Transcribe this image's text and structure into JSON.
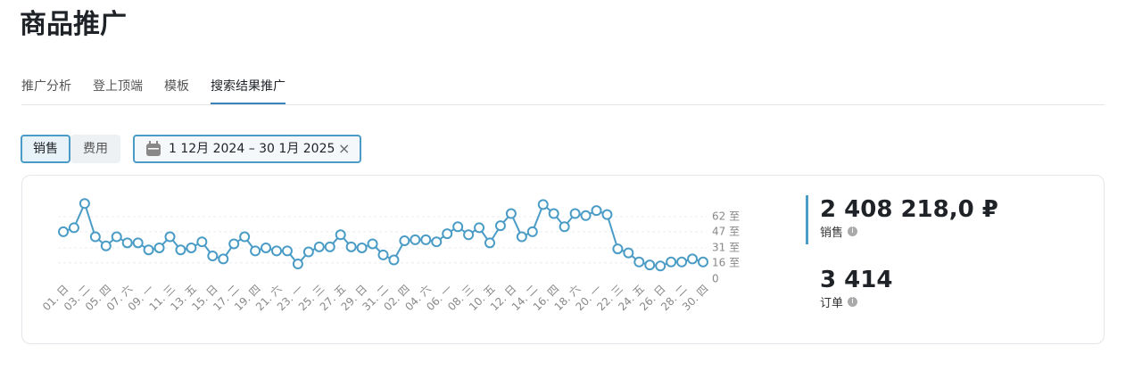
{
  "header": {
    "title": "商品推广"
  },
  "tabs": [
    "推广分析",
    "登上顶端",
    "模板",
    "搜索结果推广"
  ],
  "active_tab": 3,
  "toggle": [
    "销售",
    "费用"
  ],
  "active_toggle": 0,
  "date_range": "1 12月 2024 – 30 1月 2025",
  "chart_data": {
    "type": "line",
    "color": "#4a9cc6",
    "grid": true,
    "categories": [
      "01. 日",
      null,
      "03. 二",
      null,
      "05. 四",
      null,
      "07. 六",
      null,
      "09. 一",
      null,
      "11. 三",
      null,
      "13. 五",
      null,
      "15. 日",
      null,
      "17. 二",
      null,
      "19. 四",
      null,
      "21. 六",
      null,
      "23. 一",
      null,
      "25. 三",
      null,
      "27. 五",
      null,
      "29. 日",
      null,
      "31. 二",
      null,
      "02. 四",
      null,
      "04. 六",
      null,
      "06. 一",
      null,
      "08. 三",
      null,
      "10. 五",
      null,
      "12. 日",
      null,
      "14. 二",
      null,
      "16. 四",
      null,
      "18. 六",
      null,
      "20. 一",
      null,
      "22. 三",
      null,
      "24. 五",
      null,
      "26. 日",
      null,
      "28. 二",
      null,
      "30. 四"
    ],
    "values": [
      47,
      51,
      75,
      42,
      33,
      42,
      36,
      36,
      29,
      31,
      42,
      29,
      31,
      37,
      23,
      20,
      35,
      42,
      28,
      31,
      28,
      28,
      15,
      27,
      32,
      32,
      44,
      32,
      31,
      35,
      24,
      19,
      38,
      39,
      39,
      37,
      45,
      52,
      44,
      51,
      36,
      53,
      65,
      42,
      47,
      74,
      65,
      52,
      65,
      63,
      68,
      64,
      30,
      26,
      17,
      14,
      13,
      17,
      17,
      20,
      17
    ],
    "ylim": [
      0,
      80
    ],
    "yticks": [
      0,
      {
        "value": 16,
        "label": "16 至"
      },
      {
        "value": 31,
        "label": "31 至"
      },
      {
        "value": 47,
        "label": "47 至"
      },
      {
        "value": 62,
        "label": "62 至"
      }
    ]
  },
  "stats": [
    {
      "value": "2 408 218,0 ₽",
      "label": "销售"
    },
    {
      "value": "3 414",
      "label": "订单"
    }
  ]
}
